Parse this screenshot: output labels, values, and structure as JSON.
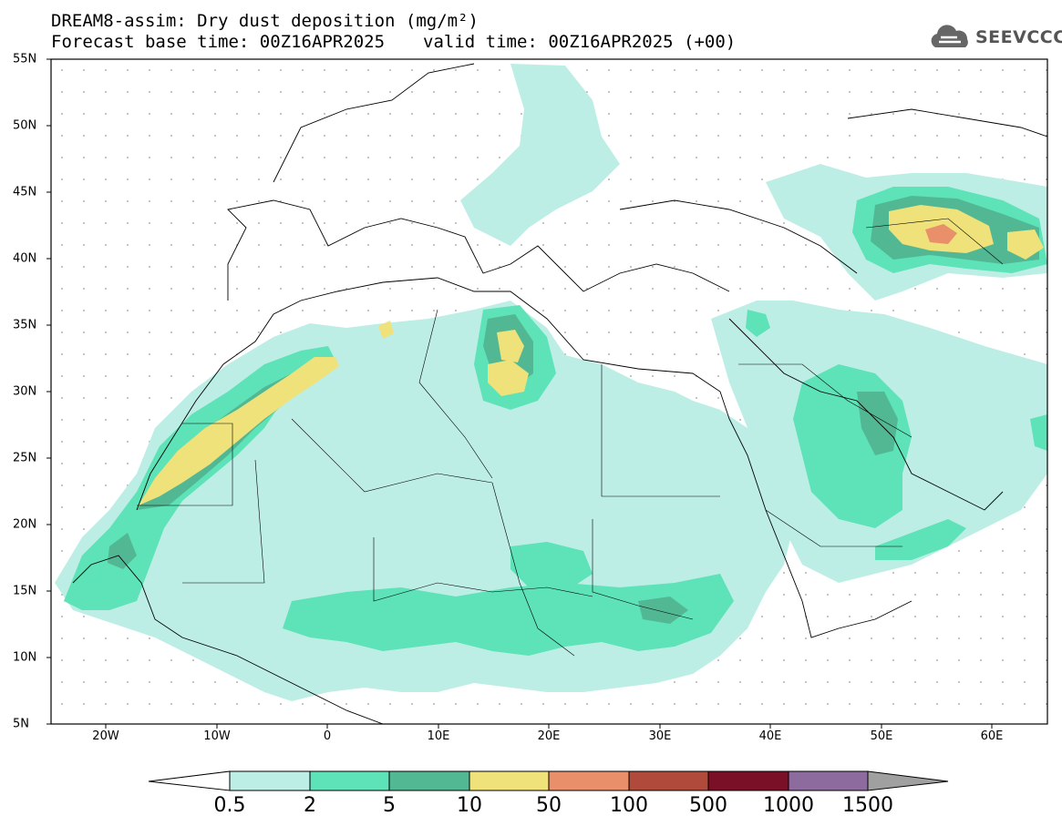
{
  "title": {
    "line1": "DREAM8-assim: Dry dust deposition (mg/m²)",
    "base_time": "Forecast base time: 00Z16APR2025",
    "valid_time": "valid time: 00Z16APR2025 (+00)"
  },
  "logo": {
    "text": "SEEVCCC",
    "icon": "cloud-icon"
  },
  "map": {
    "projection": "lat-lon",
    "lon_range": [
      -25,
      65
    ],
    "lat_range": [
      5,
      55
    ],
    "lat_ticks": [
      "55N",
      "50N",
      "45N",
      "40N",
      "35N",
      "30N",
      "25N",
      "20N",
      "15N",
      "10N",
      "5N"
    ],
    "lon_ticks": [
      "20W",
      "10W",
      "0",
      "10E",
      "20E",
      "30E",
      "40E",
      "50E",
      "60E"
    ],
    "variable": "Dry dust deposition"
  },
  "colorbar": {
    "labels": [
      "0.5",
      "2",
      "5",
      "10",
      "50",
      "100",
      "500",
      "1000",
      "1500"
    ],
    "colors": [
      "#bdeee6",
      "#5ee2b8",
      "#52b894",
      "#f0e27a",
      "#e98f6a",
      "#b04a3a",
      "#7a0f28",
      "#8e6b9e",
      "#a0a0a0"
    ]
  }
}
